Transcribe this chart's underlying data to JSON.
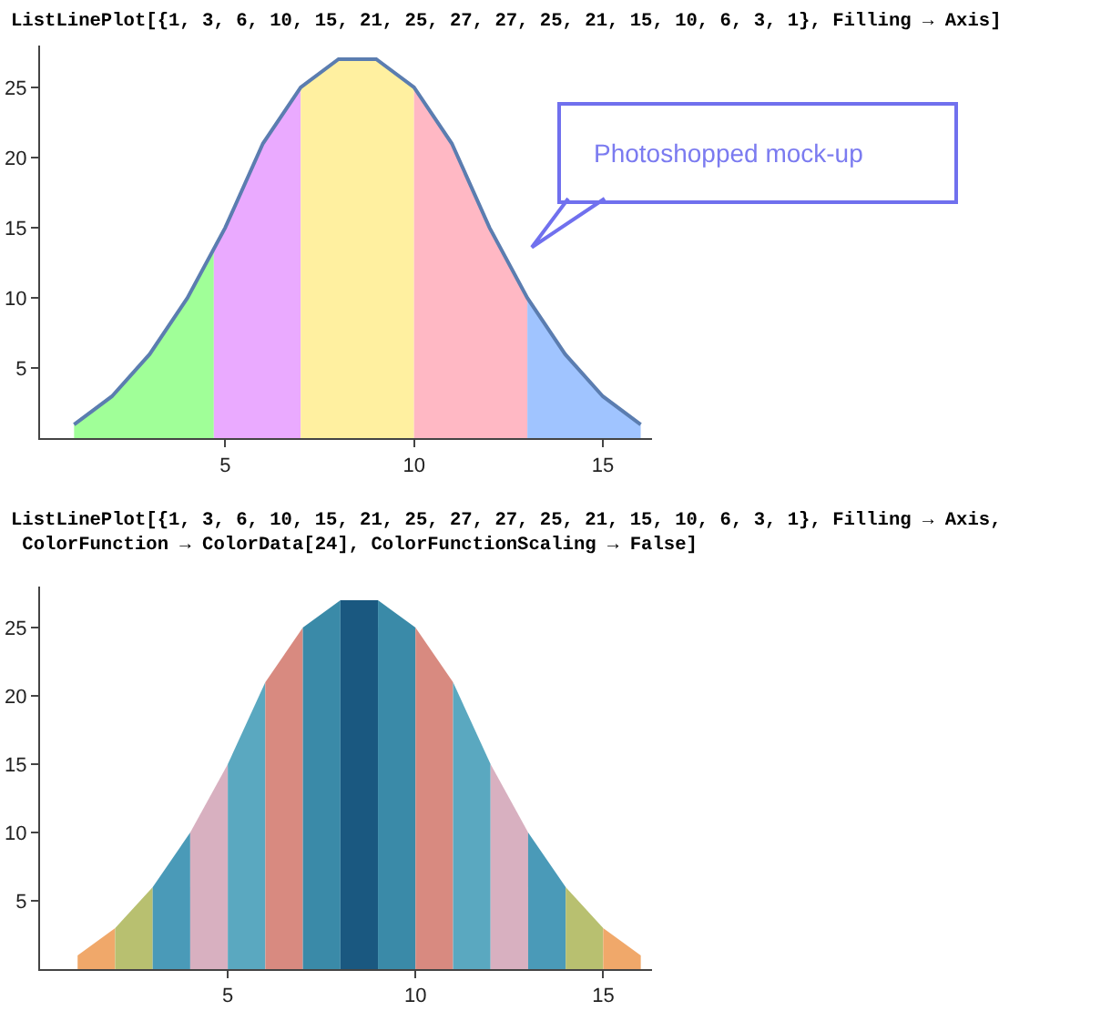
{
  "chart_data": [
    {
      "type": "area",
      "title": "ListLinePlot[{1, 3, 6, 10, 15, 21, 25, 27, 27, 25, 21, 15, 10, 6, 3, 1}, Filling → Axis]",
      "series": [
        {
          "type": "area",
          "color": "#a0ff98",
          "x": [
            1,
            2,
            3,
            4,
            4.7
          ],
          "values": [
            1,
            3,
            6,
            10,
            13.5
          ]
        },
        {
          "type": "area",
          "color": "#eaaaff",
          "x": [
            4.7,
            5,
            6,
            7
          ],
          "values": [
            13.5,
            15,
            21,
            25
          ]
        },
        {
          "type": "area",
          "color": "#fff0a0",
          "x": [
            7,
            8,
            9,
            10
          ],
          "values": [
            25,
            27,
            27,
            25
          ]
        },
        {
          "type": "area",
          "color": "#ffb8c4",
          "x": [
            10,
            11,
            12,
            13
          ],
          "values": [
            25,
            21,
            15,
            10
          ]
        },
        {
          "type": "area",
          "color": "#a0c4ff",
          "x": [
            13,
            14,
            15,
            16
          ],
          "values": [
            10,
            6,
            3,
            1
          ]
        },
        {
          "type": "line",
          "color": "#5b7db0",
          "x": [
            1,
            2,
            3,
            4,
            5,
            6,
            7,
            8,
            9,
            10,
            11,
            12,
            13,
            14,
            15,
            16
          ],
          "values": [
            1,
            3,
            6,
            10,
            15,
            21,
            25,
            27,
            27,
            25,
            21,
            15,
            10,
            6,
            3,
            1
          ]
        }
      ],
      "annotations": [
        "Photoshopped mock-up"
      ],
      "xlim": [
        0.1,
        16.3
      ],
      "ylim": [
        0,
        28
      ],
      "xticks": [
        5,
        10,
        15
      ],
      "yticks": [
        5,
        10,
        15,
        20,
        25
      ]
    },
    {
      "type": "area",
      "title": "ListLinePlot[{1, 3, 6, 10, 15, 21, 25, 27, 27, 25, 21, 15, 10, 6, 3, 1}, Filling → Axis,\n ColorFunction → ColorData[24], ColorFunctionScaling → False]",
      "series": [
        {
          "color": "#f0a86a",
          "x": [
            1,
            2
          ],
          "values": [
            1,
            3
          ]
        },
        {
          "color": "#b8c070",
          "x": [
            2,
            3
          ],
          "values": [
            3,
            6
          ]
        },
        {
          "color": "#4a9ab8",
          "x": [
            3,
            4
          ],
          "values": [
            6,
            10
          ]
        },
        {
          "color": "#d8b0c0",
          "x": [
            4,
            5
          ],
          "values": [
            10,
            15
          ]
        },
        {
          "color": "#5aa8c0",
          "x": [
            5,
            6
          ],
          "values": [
            15,
            21
          ]
        },
        {
          "color": "#d88a80",
          "x": [
            6,
            7
          ],
          "values": [
            21,
            25
          ]
        },
        {
          "color": "#3a8aa8",
          "x": [
            7,
            8
          ],
          "values": [
            25,
            27
          ]
        },
        {
          "color": "#1a5880",
          "x": [
            8,
            9
          ],
          "values": [
            27,
            27
          ]
        },
        {
          "color": "#3a8aa8",
          "x": [
            9,
            10
          ],
          "values": [
            27,
            25
          ]
        },
        {
          "color": "#d88a80",
          "x": [
            10,
            11
          ],
          "values": [
            25,
            21
          ]
        },
        {
          "color": "#5aa8c0",
          "x": [
            11,
            12
          ],
          "values": [
            21,
            15
          ]
        },
        {
          "color": "#d8b0c0",
          "x": [
            12,
            13
          ],
          "values": [
            15,
            10
          ]
        },
        {
          "color": "#4a9ab8",
          "x": [
            13,
            14
          ],
          "values": [
            10,
            6
          ]
        },
        {
          "color": "#b8c070",
          "x": [
            14,
            15
          ],
          "values": [
            6,
            3
          ]
        },
        {
          "color": "#f0a86a",
          "x": [
            15,
            16
          ],
          "values": [
            3,
            1
          ]
        }
      ],
      "xlim": [
        0,
        16.3
      ],
      "ylim": [
        0,
        28
      ],
      "xticks": [
        5,
        10,
        15
      ],
      "yticks": [
        5,
        10,
        15,
        20,
        25
      ]
    }
  ]
}
